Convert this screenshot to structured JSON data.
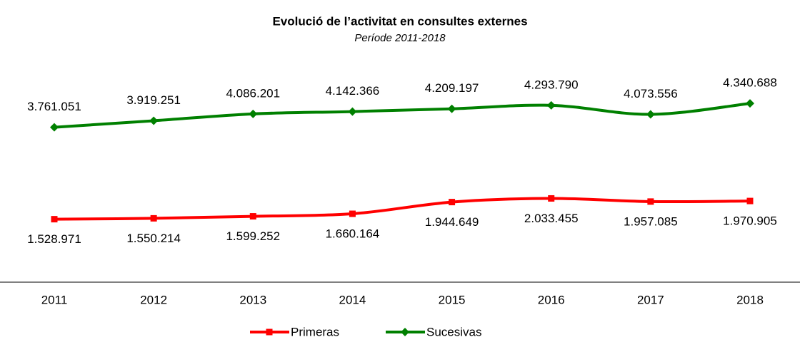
{
  "chart_data": {
    "type": "line",
    "title": "Evolució de l’activitat en consultes externes",
    "subtitle": "Període 2011-2018",
    "categories": [
      "2011",
      "2012",
      "2013",
      "2014",
      "2015",
      "2016",
      "2017",
      "2018"
    ],
    "ylim": [
      0,
      5000000
    ],
    "smooth": true,
    "legend": "bottom",
    "series": [
      {
        "name": "Primeras",
        "color": "#ff0000",
        "marker": "square",
        "values": [
          1528971,
          1550214,
          1599252,
          1660164,
          1944649,
          2033455,
          1957085,
          1970905
        ],
        "value_labels": [
          "1.528.971",
          "1.550.214",
          "1.599.252",
          "1.660.164",
          "1.944.649",
          "2.033.455",
          "1.957.085",
          "1.970.905"
        ],
        "label_position": "below"
      },
      {
        "name": "Sucesivas",
        "color": "#008000",
        "marker": "diamond",
        "values": [
          3761051,
          3919251,
          4086201,
          4142366,
          4209197,
          4293790,
          4073556,
          4340688
        ],
        "value_labels": [
          "3.761.051",
          "3.919.251",
          "4.086.201",
          "4.142.366",
          "4.209.197",
          "4.293.790",
          "4.073.556",
          "4.340.688"
        ],
        "label_position": "above"
      }
    ]
  }
}
